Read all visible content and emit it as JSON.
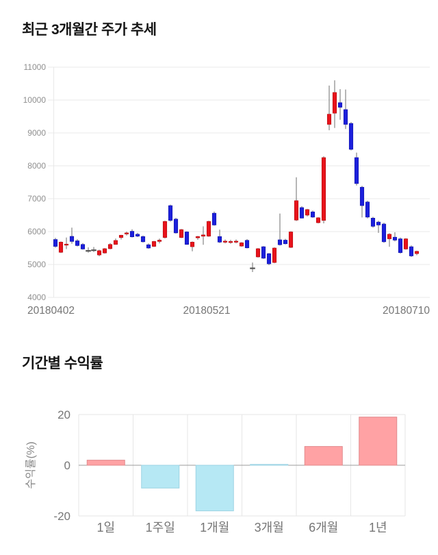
{
  "titles": {
    "price_trend": "최근 3개월간 주가 추세",
    "period_returns": "기간별 수익률"
  },
  "chart_data": [
    {
      "type": "candlestick",
      "title": "최근 3개월간 주가 추세",
      "ylim": [
        4000,
        11000
      ],
      "y_ticks": [
        11000,
        10000,
        9000,
        8000,
        7000,
        6000,
        5000,
        4000
      ],
      "x_tick_labels": [
        "20180402",
        "20180521",
        "20180710"
      ],
      "grid": true,
      "up_color": "#e8131b",
      "up_stroke": "#b00b10",
      "down_color": "#1c20dc",
      "down_stroke": "#0e11a6",
      "doji_color": "#555555",
      "wick_color": "#6e6e6e",
      "candles_format": [
        "open",
        "high",
        "low",
        "close"
      ],
      "candles": [
        [
          5760,
          5810,
          5510,
          5550
        ],
        [
          5370,
          5700,
          5350,
          5680
        ],
        [
          5600,
          5820,
          5470,
          5620
        ],
        [
          5855,
          6120,
          5630,
          5700
        ],
        [
          5720,
          5770,
          5550,
          5575
        ],
        [
          5610,
          5650,
          5450,
          5470
        ],
        [
          5430,
          5520,
          5360,
          5430
        ],
        [
          5450,
          5530,
          5380,
          5450
        ],
        [
          5290,
          5450,
          5250,
          5420
        ],
        [
          5350,
          5500,
          5330,
          5480
        ],
        [
          5480,
          5650,
          5460,
          5610
        ],
        [
          5610,
          5790,
          5600,
          5730
        ],
        [
          5820,
          5900,
          5760,
          5890
        ],
        [
          5930,
          6000,
          5880,
          5960
        ],
        [
          6010,
          6070,
          5820,
          5840
        ],
        [
          5920,
          5960,
          5830,
          5860
        ],
        [
          5850,
          5880,
          5670,
          5690
        ],
        [
          5600,
          5640,
          5480,
          5500
        ],
        [
          5550,
          5720,
          5530,
          5700
        ],
        [
          5700,
          5790,
          5640,
          5740
        ],
        [
          5820,
          6330,
          5790,
          6310
        ],
        [
          6790,
          6820,
          6300,
          6340
        ],
        [
          6380,
          6420,
          5940,
          5960
        ],
        [
          5820,
          6080,
          5800,
          6060
        ],
        [
          5990,
          6010,
          5600,
          5610
        ],
        [
          5540,
          5700,
          5400,
          5680
        ],
        [
          5810,
          5870,
          5750,
          5850
        ],
        [
          5860,
          6160,
          5600,
          5900
        ],
        [
          5860,
          6330,
          5840,
          6310
        ],
        [
          6560,
          6610,
          6180,
          6200
        ],
        [
          5850,
          6060,
          5650,
          5680
        ],
        [
          5700,
          5760,
          5640,
          5710
        ],
        [
          5690,
          5750,
          5630,
          5700
        ],
        [
          5700,
          5760,
          5640,
          5710
        ],
        [
          5560,
          5680,
          5540,
          5660
        ],
        [
          5735,
          5770,
          5490,
          5505
        ],
        [
          4900,
          5060,
          4770,
          4900
        ],
        [
          5230,
          5500,
          5210,
          5480
        ],
        [
          5540,
          5560,
          5170,
          5190
        ],
        [
          5330,
          5350,
          4980,
          5020
        ],
        [
          5060,
          5520,
          5040,
          5500
        ],
        [
          5750,
          6550,
          5575,
          5600
        ],
        [
          5740,
          5780,
          5610,
          5630
        ],
        [
          5520,
          6010,
          5500,
          5990
        ],
        [
          6350,
          7650,
          6320,
          6940
        ],
        [
          6730,
          6770,
          6400,
          6410
        ],
        [
          6500,
          6690,
          6460,
          6670
        ],
        [
          6600,
          6640,
          6420,
          6440
        ],
        [
          6270,
          6440,
          6250,
          6420
        ],
        [
          6340,
          8290,
          6250,
          8250
        ],
        [
          9260,
          10440,
          9080,
          9570
        ],
        [
          9600,
          10600,
          9150,
          10230
        ],
        [
          9920,
          10330,
          9400,
          9780
        ],
        [
          9710,
          10320,
          9120,
          9260
        ],
        [
          9290,
          9330,
          8470,
          8500
        ],
        [
          8250,
          8400,
          7400,
          7460
        ],
        [
          7350,
          7390,
          6430,
          6790
        ],
        [
          6900,
          6940,
          6400,
          6440
        ],
        [
          6410,
          6450,
          6120,
          6160
        ],
        [
          6290,
          6330,
          5960,
          6200
        ],
        [
          6230,
          6270,
          5660,
          5690
        ],
        [
          5780,
          5950,
          5540,
          5920
        ],
        [
          5830,
          5980,
          5700,
          5740
        ],
        [
          5780,
          5820,
          5330,
          5360
        ],
        [
          5470,
          5800,
          5450,
          5780
        ],
        [
          5540,
          5580,
          5230,
          5260
        ],
        [
          5330,
          5420,
          5280,
          5400
        ]
      ]
    },
    {
      "type": "bar",
      "title": "기간별 수익률",
      "ylabel": "수익률(%)",
      "ylim": [
        -25,
        25
      ],
      "y_ticks": [
        20,
        0,
        -20
      ],
      "grid": true,
      "categories": [
        "1일",
        "1주일",
        "1개월",
        "3개월",
        "6개월",
        "1년"
      ],
      "values": [
        2,
        -9,
        -18,
        0,
        7.4,
        19
      ],
      "pos_color": "#ffa2a4",
      "pos_stroke": "#e0898c",
      "neg_color": "#b6e8f4",
      "neg_stroke": "#9cd3e3"
    }
  ]
}
